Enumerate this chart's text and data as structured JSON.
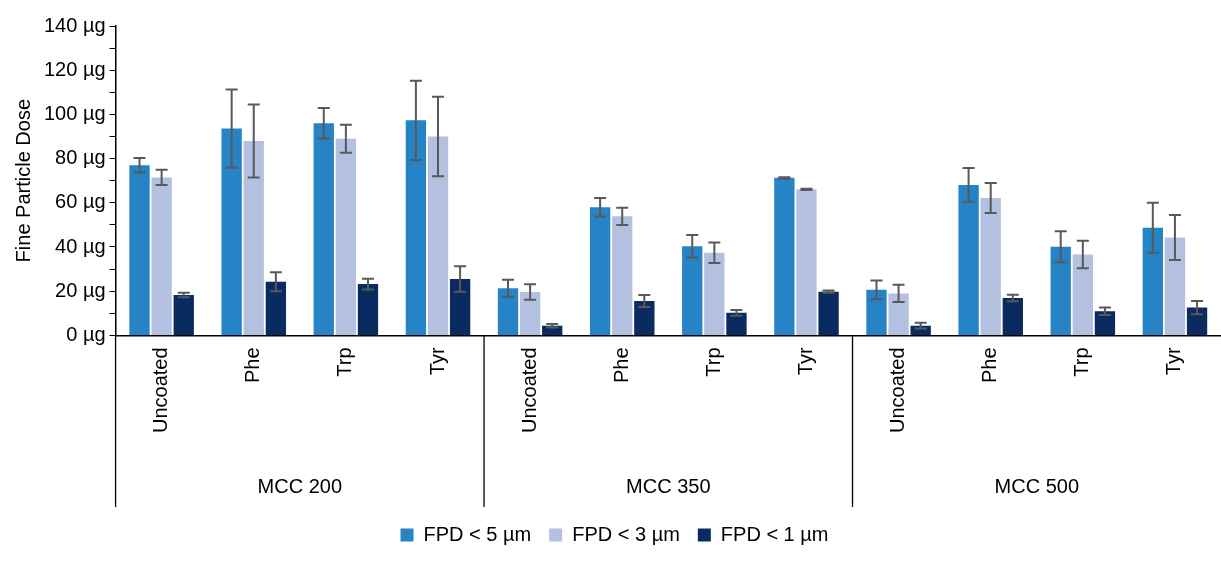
{
  "chart_data": {
    "type": "bar",
    "ylabel": "Fine Particle Dose",
    "categories": [
      "Uncoated",
      "Phe",
      "Trp",
      "Tyr",
      "Uncoated",
      "Phe",
      "Trp",
      "Tyr",
      "Uncoated",
      "Phe",
      "Trp",
      "Tyr"
    ],
    "annotations": [
      "MCC 200",
      "MCC 350",
      "MCC 500"
    ],
    "series": [
      {
        "name": "FPD < 5 µm",
        "color": "#2683c6",
        "values": [
          77,
          93.6,
          96,
          97.3,
          21.3,
          58,
          40.3,
          71.3,
          20.6,
          68.1,
          40.1,
          48.7
        ],
        "errors": [
          3.3,
          17.7,
          6.9,
          17.9,
          3.9,
          4.2,
          5.1,
          0.3,
          4.2,
          7.6,
          7,
          11.3
        ]
      },
      {
        "name": "FPD < 3 µm",
        "color": "#b4c0e0",
        "values": [
          71.5,
          88,
          89,
          90,
          19.6,
          53.9,
          37.4,
          66.1,
          19,
          62.2,
          36.6,
          44.3
        ],
        "errors": [
          3.4,
          16.5,
          6.3,
          18,
          3.5,
          3.9,
          4.6,
          0.3,
          3.9,
          6.8,
          6.2,
          10.2
        ]
      },
      {
        "name": "FPD < 1 µm",
        "color": "#0a2b60",
        "values": [
          18.3,
          24.3,
          23.2,
          25.5,
          4.4,
          15.6,
          10.2,
          19.8,
          4.4,
          16.9,
          10.9,
          12.6
        ],
        "errors": [
          1,
          4.3,
          2.4,
          5.8,
          0.8,
          2.7,
          1.3,
          0.5,
          1.3,
          1.5,
          1.7,
          3
        ]
      }
    ],
    "ylim": [
      0,
      140
    ],
    "yticks": [
      {
        "value": 0,
        "label": "0 µg"
      },
      {
        "value": 10,
        "label": null
      },
      {
        "value": 20,
        "label": "20 µg"
      },
      {
        "value": 30,
        "label": null
      },
      {
        "value": 40,
        "label": "40 µg"
      },
      {
        "value": 50,
        "label": null
      },
      {
        "value": 60,
        "label": "60 µg"
      },
      {
        "value": 70,
        "label": null
      },
      {
        "value": 80,
        "label": "80 µg"
      },
      {
        "value": 90,
        "label": null
      },
      {
        "value": 100,
        "label": "100 µg"
      },
      {
        "value": 110,
        "label": null
      },
      {
        "value": 120,
        "label": "120 µg"
      },
      {
        "value": 130,
        "label": null
      },
      {
        "value": 140,
        "label": "140 µg"
      }
    ],
    "grid": false,
    "legend": "bottom"
  }
}
